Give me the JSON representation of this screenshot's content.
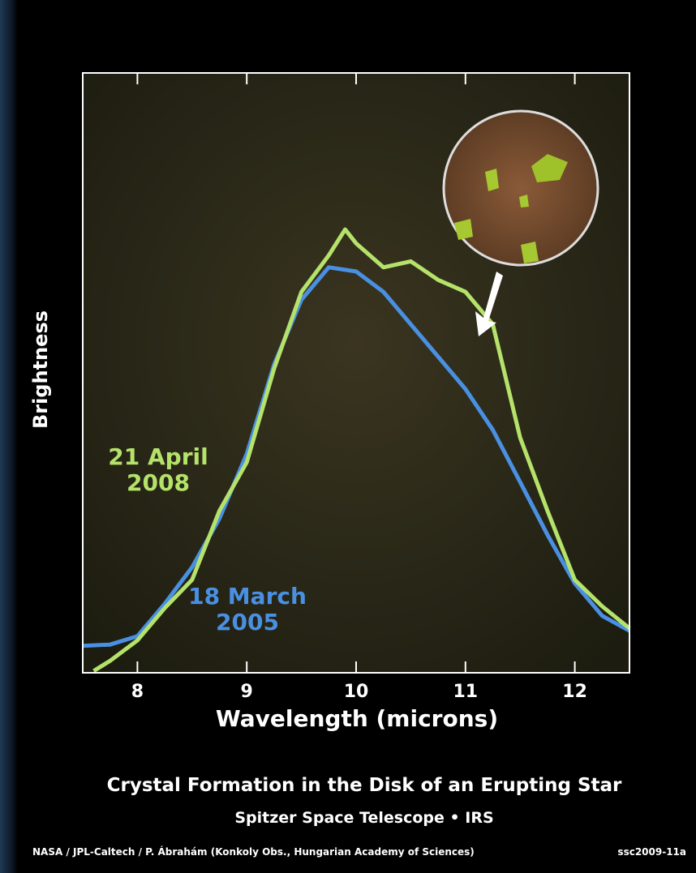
{
  "chart_data": {
    "type": "line",
    "title": "Crystal Formation in the Disk of an Erupting Star",
    "subtitle": "Spitzer Space Telescope • IRS",
    "credit": "NASA / JPL-Caltech / P. Ábrahám (Konkoly Obs., Hungarian Academy of Sciences)",
    "image_id": "ssc2009-11a",
    "x_label": "Wavelength (microns)",
    "y_label": "Brightness",
    "xlim": [
      7.5,
      12.5
    ],
    "xticks": [
      8,
      9,
      10,
      11,
      12
    ],
    "ylim": [
      0,
      100
    ],
    "series": [
      {
        "name": "18 March 2005",
        "color": "#4a90e2",
        "x": [
          7.5,
          7.75,
          8.0,
          8.25,
          8.5,
          8.75,
          9.0,
          9.25,
          9.5,
          9.75,
          10.0,
          10.25,
          10.5,
          10.75,
          11.0,
          11.25,
          11.5,
          11.75,
          12.0,
          12.25,
          12.5
        ],
        "values": [
          4.5,
          4.7,
          6.1,
          11.5,
          17.6,
          25.7,
          36.5,
          51.4,
          62.2,
          67.6,
          66.9,
          63.5,
          58.1,
          52.7,
          47.3,
          40.5,
          31.8,
          23.0,
          14.9,
          9.5,
          7.0
        ]
      },
      {
        "name": "21 April 2008",
        "color": "#b5e26a",
        "x": [
          7.6,
          7.75,
          8.0,
          8.25,
          8.5,
          8.75,
          9.0,
          9.25,
          9.5,
          9.75,
          9.9,
          10.0,
          10.25,
          10.5,
          10.75,
          11.0,
          11.25,
          11.5,
          11.75,
          12.0,
          12.25,
          12.5
        ],
        "values": [
          0.3,
          2.0,
          5.4,
          10.8,
          15.5,
          27.0,
          35.1,
          50.7,
          63.5,
          69.6,
          73.9,
          71.6,
          67.6,
          68.6,
          65.5,
          63.5,
          58.1,
          39.2,
          27.0,
          15.5,
          11.1,
          7.4
        ]
      }
    ]
  }
}
